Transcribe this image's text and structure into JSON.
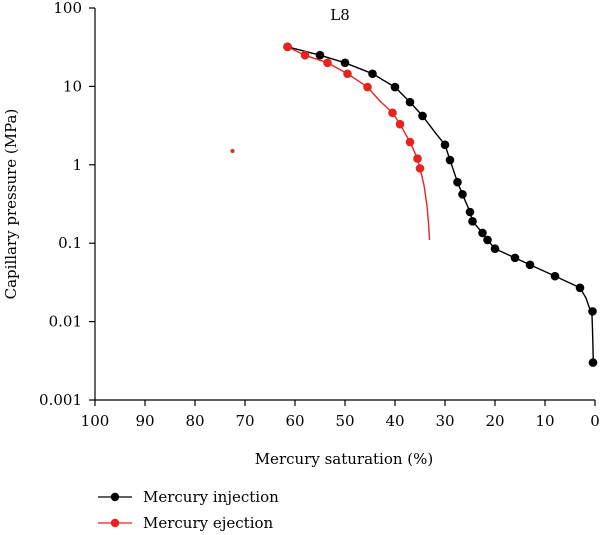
{
  "chart_data": {
    "type": "line",
    "title": "L8",
    "xlabel": "Mercury saturation (%)",
    "ylabel": "Capillary pressure (MPa)",
    "x_ticks": [
      "100",
      "90",
      "80",
      "70",
      "60",
      "50",
      "40",
      "30",
      "20",
      "10",
      "0"
    ],
    "y_ticks": [
      "0.001",
      "0.01",
      "0.1",
      "1",
      "10",
      "100"
    ],
    "xlim": [
      100,
      0
    ],
    "ylim": [
      0.001,
      100
    ],
    "y_scale": "log",
    "x_reversed": true,
    "grid": false,
    "legend_position": "bottom-left",
    "series": [
      {
        "name": "Mercury injection",
        "color": "#000000",
        "markers": [
          [
            61.5,
            32
          ],
          [
            55,
            25
          ],
          [
            50,
            20
          ],
          [
            44.5,
            14.5
          ],
          [
            40,
            9.8
          ],
          [
            37,
            6.3
          ],
          [
            34.5,
            4.2
          ],
          [
            30,
            1.8
          ],
          [
            29,
            1.15
          ],
          [
            27.5,
            0.6
          ],
          [
            26.5,
            0.42
          ],
          [
            25,
            0.25
          ],
          [
            24.5,
            0.19
          ],
          [
            22.5,
            0.135
          ],
          [
            21.5,
            0.11
          ],
          [
            20,
            0.085
          ],
          [
            16,
            0.065
          ],
          [
            13,
            0.053
          ],
          [
            8,
            0.038
          ],
          [
            3,
            0.027
          ],
          [
            0.5,
            0.0135
          ],
          [
            0.4,
            0.003
          ]
        ],
        "curve": [
          [
            61.5,
            32
          ],
          [
            55,
            25
          ],
          [
            50,
            20
          ],
          [
            44.5,
            14.5
          ],
          [
            40,
            9.8
          ],
          [
            37,
            6.3
          ],
          [
            34.5,
            4.2
          ],
          [
            32,
            2.6
          ],
          [
            30,
            1.8
          ],
          [
            29,
            1.15
          ],
          [
            27.5,
            0.6
          ],
          [
            26.5,
            0.42
          ],
          [
            25,
            0.25
          ],
          [
            24.5,
            0.19
          ],
          [
            22.5,
            0.135
          ],
          [
            21.5,
            0.11
          ],
          [
            20,
            0.085
          ],
          [
            16,
            0.065
          ],
          [
            13,
            0.053
          ],
          [
            8,
            0.038
          ],
          [
            3,
            0.027
          ],
          [
            1.8,
            0.02
          ],
          [
            0.6,
            0.012
          ],
          [
            0.5,
            0.008
          ],
          [
            0.4,
            0.0045
          ],
          [
            0.35,
            0.003
          ]
        ]
      },
      {
        "name": "Mercury ejection",
        "color": "#e8231f",
        "markers": [
          [
            61.5,
            32
          ],
          [
            58,
            25
          ],
          [
            53.5,
            20
          ],
          [
            49.5,
            14.5
          ],
          [
            45.5,
            9.8
          ],
          [
            40.5,
            4.6
          ],
          [
            39,
            3.3
          ],
          [
            37,
            1.95
          ],
          [
            35.5,
            1.2
          ],
          [
            35,
            0.9
          ]
        ],
        "curve": [
          [
            61.5,
            32
          ],
          [
            58,
            25
          ],
          [
            53.5,
            20
          ],
          [
            49.5,
            14.5
          ],
          [
            45.5,
            9.8
          ],
          [
            43,
            6.5
          ],
          [
            40.5,
            4.6
          ],
          [
            39,
            3.3
          ],
          [
            37,
            1.95
          ],
          [
            35.5,
            1.2
          ],
          [
            35,
            0.9
          ],
          [
            34.2,
            0.55
          ],
          [
            33.6,
            0.3
          ],
          [
            33.3,
            0.18
          ],
          [
            33.1,
            0.11
          ]
        ],
        "outliers": [
          [
            72.5,
            1.5
          ]
        ]
      }
    ]
  }
}
